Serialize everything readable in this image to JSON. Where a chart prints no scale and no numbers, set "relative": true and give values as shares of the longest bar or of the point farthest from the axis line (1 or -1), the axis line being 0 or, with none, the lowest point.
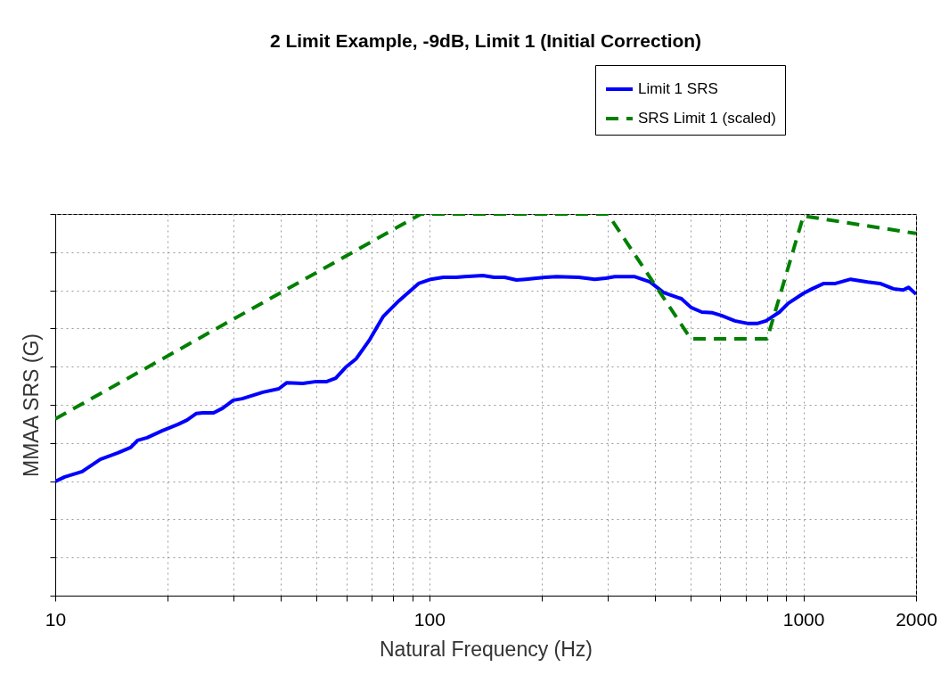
{
  "chart_data": {
    "type": "line",
    "title": "2 Limit Example, -9dB, Limit 1 (Initial Correction)",
    "xlabel": "Natural Frequency (Hz)",
    "ylabel": "MMAA SRS (G)",
    "relative": true,
    "log": "x",
    "grid": true,
    "legend": "top right",
    "xlim": [
      10,
      2000
    ],
    "xticks": [
      10,
      {
        "value": 20,
        "label": null
      },
      {
        "value": 30,
        "label": null
      },
      {
        "value": 40,
        "label": null
      },
      {
        "value": 50,
        "label": null
      },
      {
        "value": 60,
        "label": null
      },
      {
        "value": 70,
        "label": null
      },
      {
        "value": 80,
        "label": null
      },
      {
        "value": 90,
        "label": null
      },
      100,
      {
        "value": 200,
        "label": null
      },
      {
        "value": 300,
        "label": null
      },
      {
        "value": 400,
        "label": null
      },
      {
        "value": 500,
        "label": null
      },
      {
        "value": 600,
        "label": null
      },
      {
        "value": 700,
        "label": null
      },
      {
        "value": 800,
        "label": null
      },
      {
        "value": 900,
        "label": null
      },
      1000,
      2000
    ],
    "series": [
      {
        "name": "Limit 1 SRS",
        "color": "#0000ff",
        "line_style": "solid",
        "x": [
          10,
          10.6,
          11.8,
          13.2,
          14.7,
          15.9,
          16.6,
          17.6,
          19.3,
          21.3,
          22.5,
          23.8,
          24.8,
          26.5,
          28.0,
          29.9,
          31.6,
          35.9,
          39.6,
          41.6,
          45.9,
          49.9,
          53.2,
          56.2,
          59.7,
          63.8,
          69.3,
          75.2,
          83.0,
          93.6,
          101,
          109,
          118,
          124,
          139,
          149,
          159,
          171,
          181,
          204,
          219,
          251,
          277,
          296,
          313,
          353,
          389,
          423,
          472,
          501,
          535,
          572,
          604,
          656,
          712,
          752,
          794,
          863,
          911,
          1000,
          1056,
          1134,
          1218,
          1337,
          1484,
          1602,
          1740,
          1848,
          1910,
          2000
        ],
        "values": [
          0.299,
          0.311,
          0.325,
          0.357,
          0.374,
          0.388,
          0.407,
          0.414,
          0.432,
          0.449,
          0.46,
          0.477,
          0.479,
          0.479,
          0.491,
          0.512,
          0.516,
          0.533,
          0.542,
          0.558,
          0.556,
          0.561,
          0.561,
          0.57,
          0.598,
          0.621,
          0.671,
          0.731,
          0.773,
          0.818,
          0.829,
          0.834,
          0.834,
          0.836,
          0.839,
          0.834,
          0.834,
          0.827,
          0.829,
          0.834,
          0.836,
          0.834,
          0.829,
          0.832,
          0.836,
          0.836,
          0.822,
          0.794,
          0.778,
          0.755,
          0.743,
          0.741,
          0.734,
          0.72,
          0.713,
          0.713,
          0.72,
          0.743,
          0.766,
          0.792,
          0.804,
          0.818,
          0.818,
          0.829,
          0.822,
          0.818,
          0.804,
          0.801,
          0.808,
          0.79
        ]
      },
      {
        "name": "SRS Limit 1 (scaled)",
        "color": "#008000",
        "line_style": "dashed",
        "x": [
          10,
          95,
          300,
          500,
          800,
          1000,
          2000
        ],
        "values": [
          0.463,
          1,
          1,
          0.673,
          0.673,
          0.995,
          0.949
        ]
      }
    ]
  }
}
